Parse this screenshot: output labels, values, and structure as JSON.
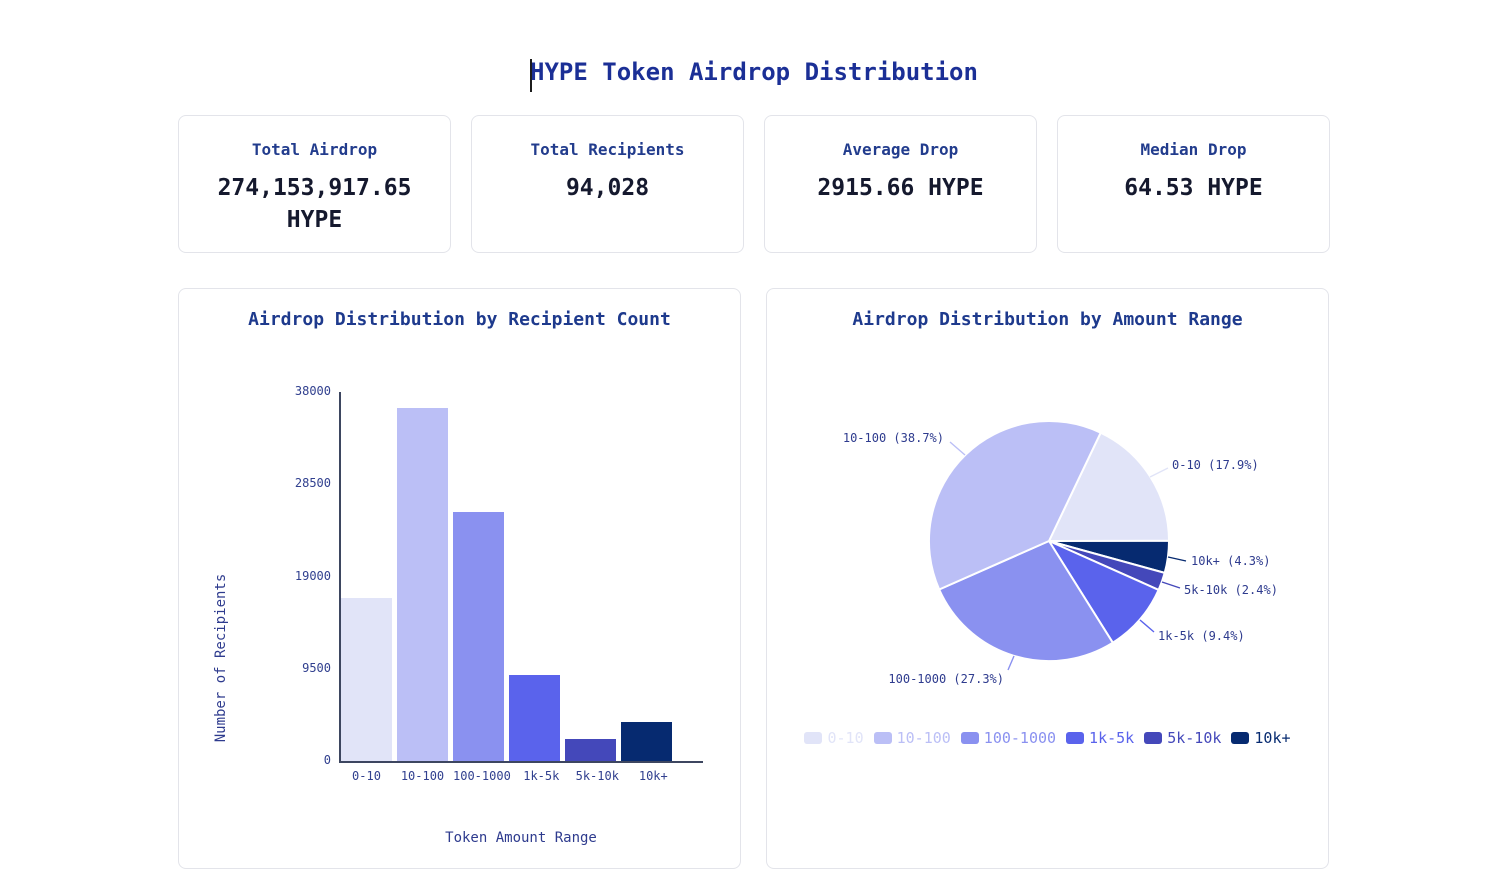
{
  "page": {
    "title": "HYPE Token Airdrop Distribution"
  },
  "stats": [
    {
      "label": "Total Airdrop",
      "value": "274,153,917.65 HYPE"
    },
    {
      "label": "Total Recipients",
      "value": "94,028"
    },
    {
      "label": "Average Drop",
      "value": "2915.66 HYPE"
    },
    {
      "label": "Median Drop",
      "value": "64.53 HYPE"
    }
  ],
  "colors": {
    "title": "#1b2f96",
    "label_navy": "#223c8d",
    "axis": "#3d4660",
    "tick_text": "#31408f",
    "palette": [
      "#e1e4f8",
      "#bbbff6",
      "#8a91f0",
      "#5a63ec",
      "#4448ba",
      "#062a70"
    ]
  },
  "chart_data": [
    {
      "type": "bar",
      "title": "Airdrop Distribution by Recipient Count",
      "categories": [
        "0-10",
        "10-100",
        "100-1000",
        "1k-5k",
        "5k-10k",
        "10k+"
      ],
      "values": [
        16831,
        36389,
        25670,
        8839,
        2257,
        4043
      ],
      "bar_colors": [
        "#e1e4f8",
        "#bbbff6",
        "#8a91f0",
        "#5a63ec",
        "#4448ba",
        "#062a70"
      ],
      "xlabel": "Token Amount Range",
      "ylabel": "Number of Recipients",
      "ylim": [
        0,
        38000
      ],
      "yticks": [
        0,
        9500,
        19000,
        28500,
        38000
      ],
      "grid": false
    },
    {
      "type": "pie",
      "title": "Airdrop Distribution by Amount Range",
      "labels": [
        "0-10",
        "10-100",
        "100-1000",
        "1k-5k",
        "5k-10k",
        "10k+"
      ],
      "percentages": [
        17.9,
        38.7,
        27.3,
        9.4,
        2.4,
        4.3
      ],
      "slice_labels": [
        "0-10 (17.9%)",
        "10-100 (38.7%)",
        "100-1000 (27.3%)",
        "1k-5k (9.4%)",
        "5k-10k (2.4%)",
        "10k+ (4.3%)"
      ],
      "colors": [
        "#e1e4f8",
        "#bbbff6",
        "#8a91f0",
        "#5a63ec",
        "#4448ba",
        "#062a70"
      ],
      "start_angle_deg": 25.5,
      "direction": "clockwise",
      "draw_order": [
        "0-10",
        "10k+",
        "5k-10k",
        "1k-5k",
        "100-1000",
        "10-100"
      ],
      "legend_position": "bottom"
    }
  ]
}
